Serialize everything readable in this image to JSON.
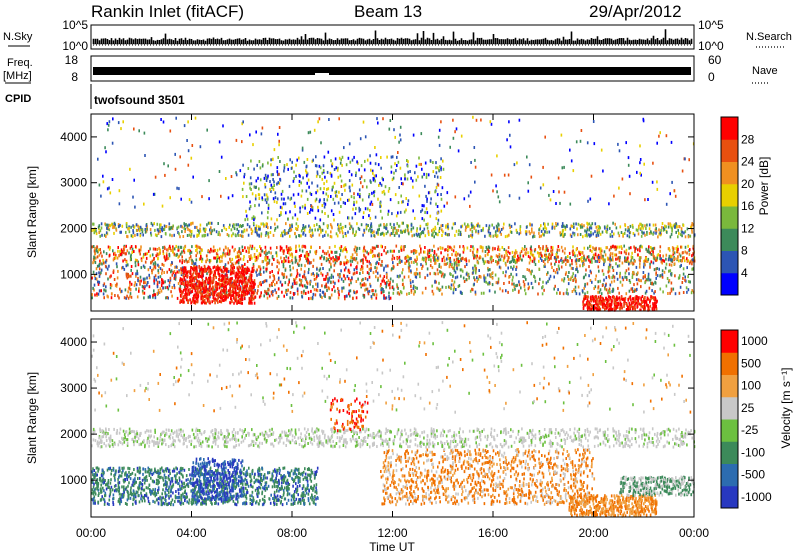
{
  "header": {
    "station": "Rankin Inlet (fitACF)",
    "beam": "Beam 13",
    "date": "29/Apr/2012"
  },
  "side_labels": {
    "nsky": "N.Sky",
    "freq_line1": "Freq.",
    "freq_line2": "[MHz]",
    "cpid": "CPID",
    "nsearch": "N.Search",
    "nave": "Nave"
  },
  "cpid_value": "twofsound 3501",
  "chart_data": [
    {
      "type": "line",
      "name": "noise",
      "y_scale": "log",
      "left_ticks": [
        "10^5",
        "10^0"
      ],
      "right_ticks": [
        "10^5",
        "10^0"
      ]
    },
    {
      "type": "line",
      "name": "frequency-nave",
      "left_ticks": [
        "18",
        "8"
      ],
      "right_ticks": [
        "60",
        "0"
      ]
    },
    {
      "type": "heatmap",
      "name": "power",
      "ylabel": "Slant Range [km]",
      "y_ticks": [
        1000,
        2000,
        3000,
        4000
      ],
      "ylim": [
        200,
        4500
      ],
      "colorbar_label": "Power [dB]",
      "colorbar_ticks": [
        "28",
        "24",
        "20",
        "16",
        "12",
        "8",
        "4"
      ],
      "colorbar_colors": [
        "#0000ff",
        "#2c55b4",
        "#3c8a5a",
        "#7ab83c",
        "#e8d000",
        "#f09020",
        "#e85010",
        "#ff0000"
      ]
    },
    {
      "type": "heatmap",
      "name": "velocity",
      "ylabel": "Slant Range [km]",
      "y_ticks": [
        1000,
        2000,
        3000,
        4000
      ],
      "ylim": [
        200,
        4500
      ],
      "colorbar_label": "Velocity [m s⁻¹]",
      "colorbar_ticks": [
        "1000",
        "500",
        "100",
        "25",
        "-25",
        "-100",
        "-500",
        "-1000"
      ],
      "colorbar_colors": [
        "#2838c0",
        "#2c6cb0",
        "#3c8a5a",
        "#6cc040",
        "#c8c8c8",
        "#f0a040",
        "#f07000",
        "#ff0000"
      ]
    }
  ],
  "x_axis": {
    "label": "Time UT",
    "ticks": [
      "00:00",
      "04:00",
      "08:00",
      "12:00",
      "16:00",
      "20:00",
      "00:00"
    ]
  }
}
